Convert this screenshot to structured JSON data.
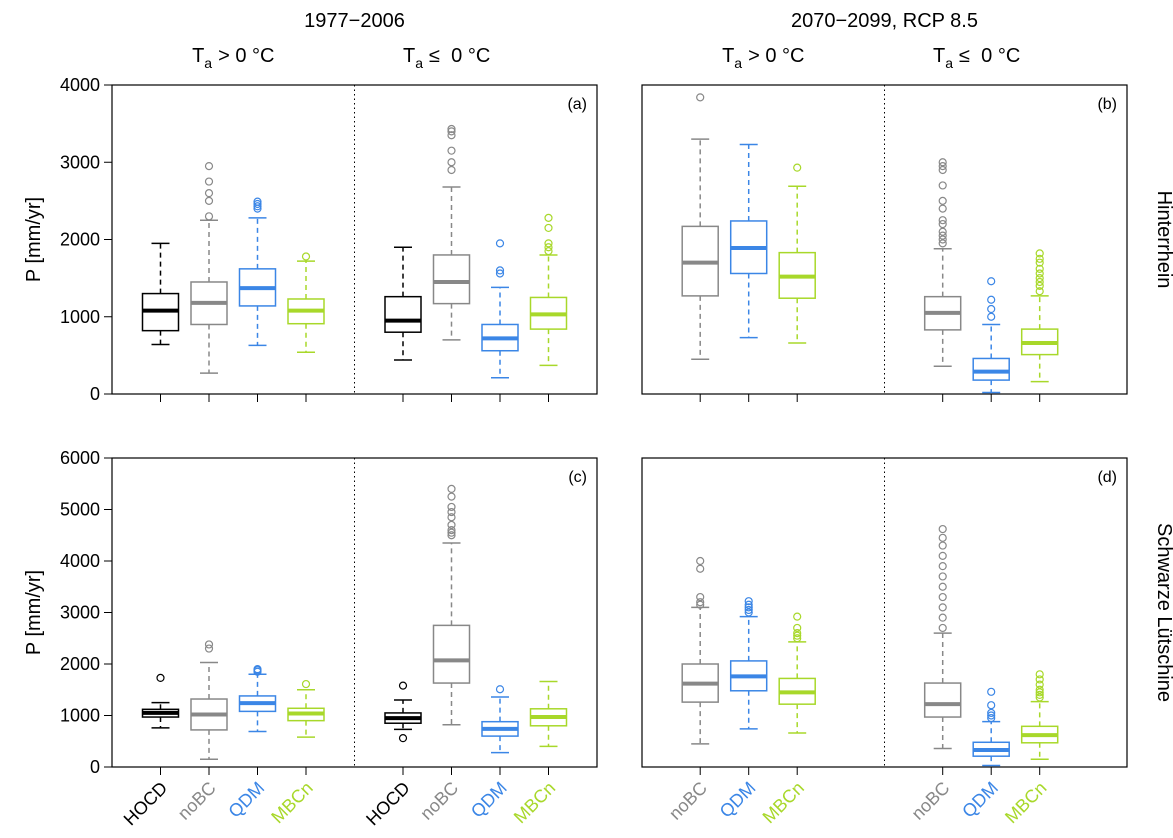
{
  "chart_data": [
    {
      "type": "box",
      "tag": "(a)",
      "title": "1977−2006",
      "group_labels": [
        {
          "symbol": "T",
          "subscript": "a",
          "relation": "> 0 °C"
        },
        {
          "symbol": "T",
          "subscript": "a",
          "relation": "≤  0 °C"
        }
      ],
      "ylabel": "P [mm/yr]",
      "ylim": [
        0,
        4000
      ],
      "yticks": [
        0,
        1000,
        2000,
        3000,
        4000
      ],
      "series": [
        {
          "name": "HOCD",
          "color": "#000000",
          "boxes": [
            {
              "whislo": 640,
              "q1": 820,
              "med": 1080,
              "q3": 1300,
              "whishi": 1950
            },
            {
              "whislo": 440,
              "q1": 800,
              "med": 950,
              "q3": 1260,
              "whishi": 1900
            }
          ]
        },
        {
          "name": "noBC",
          "color": "#888888",
          "boxes": [
            {
              "whislo": 270,
              "q1": 900,
              "med": 1180,
              "q3": 1450,
              "whishi": 2250,
              "fliers": [
                2300,
                2500,
                2600,
                2750,
                2950
              ]
            },
            {
              "whislo": 700,
              "q1": 1170,
              "med": 1450,
              "q3": 1800,
              "whishi": 2680,
              "fliers": [
                2900,
                3000,
                3150,
                3350,
                3400,
                3430
              ]
            }
          ]
        },
        {
          "name": "QDM",
          "color": "#3b86e6",
          "boxes": [
            {
              "whislo": 630,
              "q1": 1140,
              "med": 1370,
              "q3": 1620,
              "whishi": 2280,
              "fliers": [
                2400,
                2430,
                2460,
                2490
              ]
            },
            {
              "whislo": 210,
              "q1": 560,
              "med": 720,
              "q3": 900,
              "whishi": 1380,
              "fliers": [
                1560,
                1600,
                1950
              ]
            }
          ]
        },
        {
          "name": "MBCn",
          "color": "#a8d82a",
          "boxes": [
            {
              "whislo": 540,
              "q1": 910,
              "med": 1080,
              "q3": 1230,
              "whishi": 1720,
              "fliers": [
                1780
              ]
            },
            {
              "whislo": 370,
              "q1": 840,
              "med": 1030,
              "q3": 1250,
              "whishi": 1800,
              "fliers": [
                1850,
                1900,
                1950,
                2150,
                2280
              ]
            }
          ]
        }
      ]
    },
    {
      "type": "box",
      "tag": "(b)",
      "title": "2070−2099, RCP 8.5",
      "group_labels": [
        {
          "symbol": "T",
          "subscript": "a",
          "relation": "> 0 °C"
        },
        {
          "symbol": "T",
          "subscript": "a",
          "relation": "≤  0 °C"
        }
      ],
      "row_label": "Hinterrhein",
      "ylim": [
        0,
        4000
      ],
      "series": [
        {
          "name": "noBC",
          "color": "#888888",
          "boxes": [
            {
              "whislo": 450,
              "q1": 1270,
              "med": 1700,
              "q3": 2170,
              "whishi": 3300,
              "fliers": [
                3840
              ]
            },
            {
              "whislo": 360,
              "q1": 830,
              "med": 1050,
              "q3": 1260,
              "whishi": 1880,
              "fliers": [
                1950,
                2000,
                2050,
                2100,
                2200,
                2250,
                2400,
                2500,
                2700,
                2900,
                2950,
                3000
              ]
            }
          ]
        },
        {
          "name": "QDM",
          "color": "#3b86e6",
          "boxes": [
            {
              "whislo": 730,
              "q1": 1560,
              "med": 1890,
              "q3": 2240,
              "whishi": 3230
            },
            {
              "whislo": 20,
              "q1": 180,
              "med": 290,
              "q3": 460,
              "whishi": 900,
              "fliers": [
                1000,
                1100,
                1220,
                1460
              ]
            }
          ]
        },
        {
          "name": "MBCn",
          "color": "#a8d82a",
          "boxes": [
            {
              "whislo": 660,
              "q1": 1240,
              "med": 1520,
              "q3": 1830,
              "whishi": 2690,
              "fliers": [
                2930
              ]
            },
            {
              "whislo": 160,
              "q1": 510,
              "med": 660,
              "q3": 840,
              "whishi": 1270,
              "fliers": [
                1330,
                1400,
                1450,
                1500,
                1560,
                1620,
                1700,
                1750,
                1820
              ]
            }
          ]
        }
      ]
    },
    {
      "type": "box",
      "tag": "(c)",
      "ylabel": "P [mm/yr]",
      "ylim": [
        0,
        6000
      ],
      "yticks": [
        0,
        1000,
        2000,
        3000,
        4000,
        5000,
        6000
      ],
      "series": [
        {
          "name": "HOCD",
          "color": "#000000",
          "boxes": [
            {
              "whislo": 760,
              "q1": 970,
              "med": 1050,
              "q3": 1120,
              "whishi": 1250,
              "fliers": [
                1730
              ]
            },
            {
              "whislo": 730,
              "q1": 850,
              "med": 950,
              "q3": 1050,
              "whishi": 1300,
              "fliers": [
                560,
                1580
              ]
            }
          ]
        },
        {
          "name": "noBC",
          "color": "#888888",
          "boxes": [
            {
              "whislo": 150,
              "q1": 720,
              "med": 1020,
              "q3": 1320,
              "whishi": 2030,
              "fliers": [
                2300,
                2380
              ]
            },
            {
              "whislo": 820,
              "q1": 1630,
              "med": 2070,
              "q3": 2750,
              "whishi": 4350,
              "fliers": [
                4500,
                4550,
                4600,
                4700,
                4850,
                4950,
                5050,
                5250,
                5400
              ]
            }
          ]
        },
        {
          "name": "QDM",
          "color": "#3b86e6",
          "boxes": [
            {
              "whislo": 690,
              "q1": 1080,
              "med": 1240,
              "q3": 1380,
              "whishi": 1800,
              "fliers": [
                1850,
                1880,
                1900
              ]
            },
            {
              "whislo": 280,
              "q1": 600,
              "med": 740,
              "q3": 880,
              "whishi": 1360,
              "fliers": [
                1510
              ]
            }
          ]
        },
        {
          "name": "MBCn",
          "color": "#a8d82a",
          "boxes": [
            {
              "whislo": 580,
              "q1": 900,
              "med": 1040,
              "q3": 1140,
              "whishi": 1500,
              "fliers": [
                1610
              ]
            },
            {
              "whislo": 400,
              "q1": 800,
              "med": 970,
              "q3": 1130,
              "whishi": 1660
            }
          ]
        }
      ]
    },
    {
      "type": "box",
      "tag": "(d)",
      "row_label": "Schwarze Lütschine",
      "ylim": [
        0,
        6000
      ],
      "series": [
        {
          "name": "noBC",
          "color": "#888888",
          "boxes": [
            {
              "whislo": 450,
              "q1": 1260,
              "med": 1620,
              "q3": 2000,
              "whishi": 3100,
              "fliers": [
                3150,
                3200,
                3300,
                3850,
                4000
              ]
            },
            {
              "whislo": 360,
              "q1": 970,
              "med": 1220,
              "q3": 1630,
              "whishi": 2600,
              "fliers": [
                2700,
                2900,
                3100,
                3300,
                3500,
                3700,
                3900,
                4100,
                4300,
                4450,
                4620
              ]
            }
          ]
        },
        {
          "name": "QDM",
          "color": "#3b86e6",
          "boxes": [
            {
              "whislo": 740,
              "q1": 1480,
              "med": 1760,
              "q3": 2060,
              "whishi": 2920,
              "fliers": [
                3000,
                3050,
                3100,
                3150,
                3220
              ]
            },
            {
              "whislo": 30,
              "q1": 210,
              "med": 330,
              "q3": 480,
              "whishi": 880,
              "fliers": [
                950,
                1000,
                1050,
                1200,
                1460
              ]
            }
          ]
        },
        {
          "name": "MBCn",
          "color": "#a8d82a",
          "boxes": [
            {
              "whislo": 660,
              "q1": 1220,
              "med": 1450,
              "q3": 1720,
              "whishi": 2430,
              "fliers": [
                2500,
                2550,
                2600,
                2700,
                2920
              ]
            },
            {
              "whislo": 150,
              "q1": 470,
              "med": 620,
              "q3": 790,
              "whishi": 1270,
              "fliers": [
                1350,
                1400,
                1450,
                1500,
                1600,
                1700,
                1800
              ]
            }
          ]
        }
      ]
    }
  ]
}
